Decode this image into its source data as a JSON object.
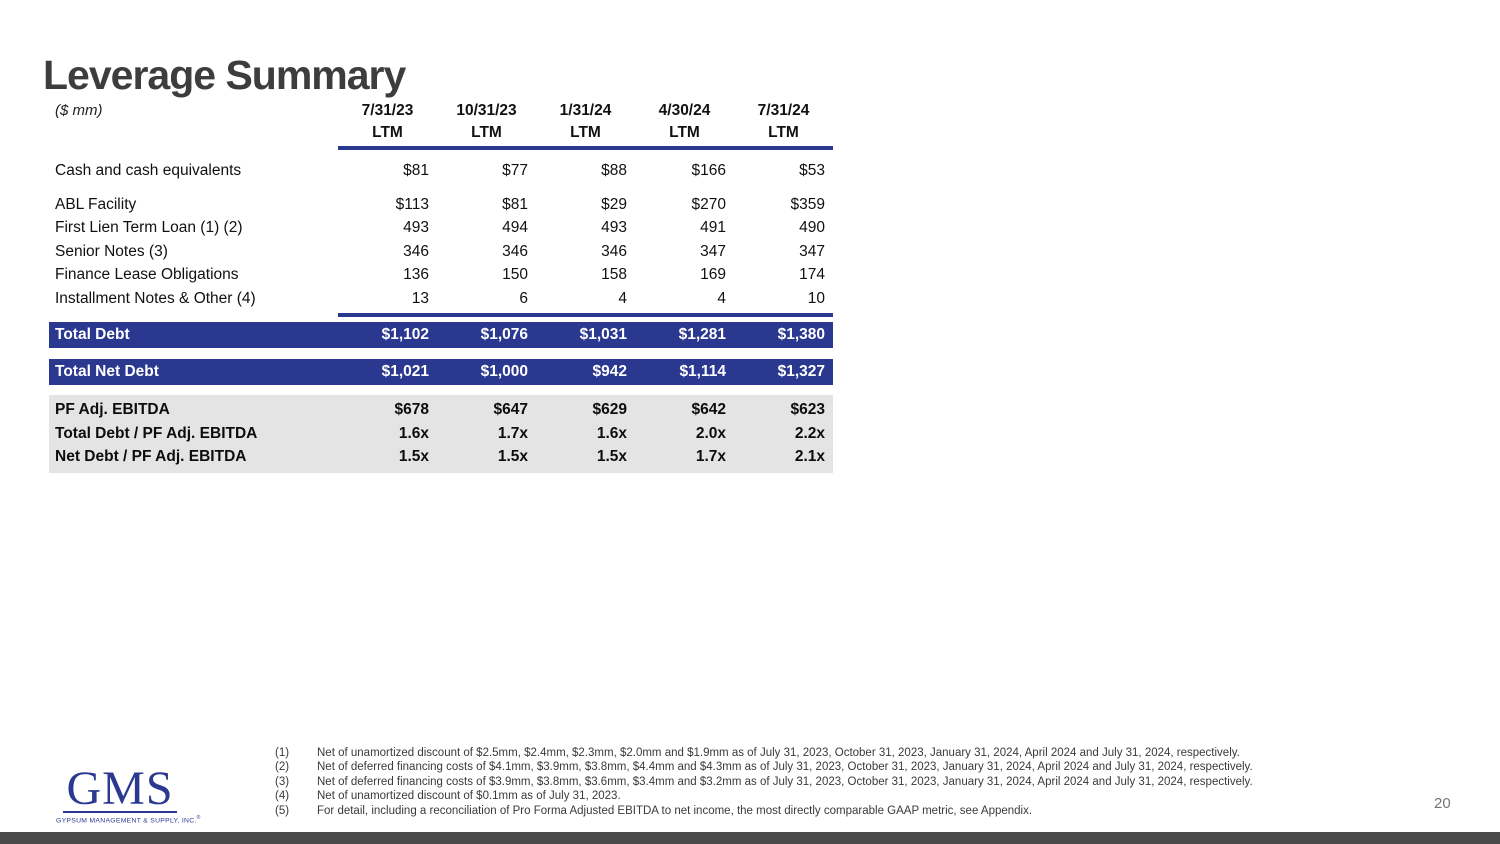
{
  "slide": {
    "title": "Leverage Summary",
    "unit_label": "($ mm)",
    "page_number": "20"
  },
  "colors": {
    "navy": "#2a3890",
    "metrics_bg": "#e4e4e4",
    "bottom_bar": "#4a4a4a",
    "title_color": "#3d3d3d",
    "body_text": "#111111",
    "footnote_color": "#3a3a3a",
    "page_num_color": "#757575",
    "logo_navy": "#2b3990"
  },
  "table": {
    "columns": [
      {
        "date": "7/31/23",
        "period": "LTM"
      },
      {
        "date": "10/31/23",
        "period": "LTM"
      },
      {
        "date": "1/31/24",
        "period": "LTM"
      },
      {
        "date": "4/30/24",
        "period": "LTM"
      },
      {
        "date": "7/31/24",
        "period": "LTM"
      }
    ],
    "cash_row": {
      "label": "Cash and cash equivalents",
      "values": [
        "$81",
        "$77",
        "$88",
        "$166",
        "$53"
      ]
    },
    "debt_rows": [
      {
        "label": "ABL Facility",
        "values": [
          "$113",
          "$81",
          "$29",
          "$270",
          "$359"
        ]
      },
      {
        "label": "First Lien Term Loan (1) (2)",
        "values": [
          "493",
          "494",
          "493",
          "491",
          "490"
        ]
      },
      {
        "label": "Senior Notes (3)",
        "values": [
          "346",
          "346",
          "346",
          "347",
          "347"
        ]
      },
      {
        "label": "Finance Lease Obligations",
        "values": [
          "136",
          "150",
          "158",
          "169",
          "174"
        ]
      },
      {
        "label": "Installment Notes & Other (4)",
        "values": [
          "13",
          "6",
          "4",
          "4",
          "10"
        ]
      }
    ],
    "total_rows": [
      {
        "label": "Total Debt",
        "values": [
          "$1,102",
          "$1,076",
          "$1,031",
          "$1,281",
          "$1,380"
        ]
      },
      {
        "label": "Total Net Debt",
        "values": [
          "$1,021",
          "$1,000",
          "$942",
          "$1,114",
          "$1,327"
        ]
      }
    ],
    "metric_rows": [
      {
        "label": "PF Adj. EBITDA",
        "values": [
          "$678",
          "$647",
          "$629",
          "$642",
          "$623"
        ]
      },
      {
        "label": "Total Debt / PF Adj. EBITDA",
        "values": [
          "1.6x",
          "1.7x",
          "1.6x",
          "2.0x",
          "2.2x"
        ]
      },
      {
        "label": "Net Debt / PF Adj. EBITDA",
        "values": [
          "1.5x",
          "1.5x",
          "1.5x",
          "1.7x",
          "2.1x"
        ]
      }
    ]
  },
  "footnotes": [
    {
      "num": "(1)",
      "text": "Net of unamortized discount of $2.5mm, $2.4mm, $2.3mm, $2.0mm and $1.9mm as of July 31, 2023, October 31, 2023, January 31, 2024, April 2024 and July 31, 2024, respectively."
    },
    {
      "num": "(2)",
      "text": "Net of deferred financing costs of $4.1mm, $3.9mm, $3.8mm, $4.4mm and $4.3mm as of July 31, 2023, October 31, 2023, January 31, 2024, April 2024 and July 31, 2024, respectively."
    },
    {
      "num": "(3)",
      "text": "Net of deferred financing costs of $3.9mm, $3.8mm, $3.6mm, $3.4mm and $3.2mm as of July 31, 2023, October 31, 2023, January 31, 2024, April 2024 and July 31, 2024, respectively."
    },
    {
      "num": "(4)",
      "text": "Net of unamortized discount of $0.1mm as of July 31, 2023."
    },
    {
      "num": "(5)",
      "text": "For detail, including a reconciliation of Pro Forma Adjusted EBITDA to net income, the most directly comparable GAAP metric, see Appendix."
    }
  ],
  "logo": {
    "name": "GMS",
    "subtitle": "GYPSUM MANAGEMENT & SUPPLY, INC.",
    "registered": "®"
  }
}
